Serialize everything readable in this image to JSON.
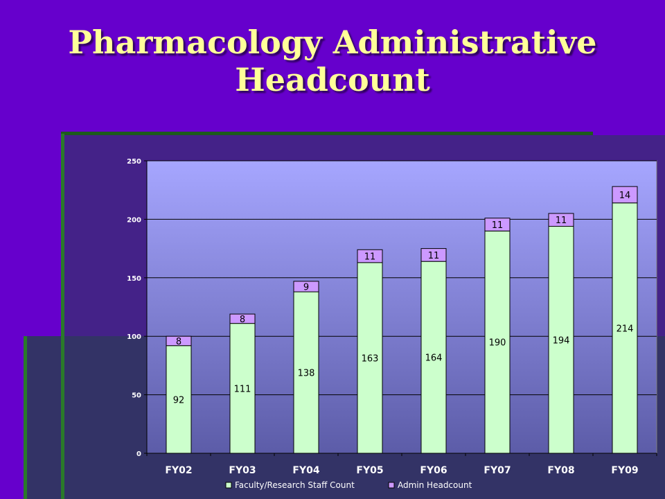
{
  "title_lines": [
    "Pharmacology Administrative",
    "Headcount"
  ],
  "chart_data": {
    "type": "bar",
    "stacked": true,
    "categories": [
      "FY02",
      "FY03",
      "FY04",
      "FY05",
      "FY06",
      "FY07",
      "FY08",
      "FY09"
    ],
    "series": [
      {
        "name": "Faculty/Research Staff Count",
        "values": [
          92,
          111,
          138,
          163,
          164,
          190,
          194,
          214
        ],
        "color": "#ccffcc"
      },
      {
        "name": "Admin Headcount",
        "values": [
          8,
          8,
          9,
          11,
          11,
          11,
          11,
          14
        ],
        "color": "#cc99ff"
      }
    ],
    "ylim": [
      0,
      250
    ],
    "yticks": [
      0,
      50,
      100,
      150,
      200,
      250
    ],
    "grid": true,
    "legend_position": "bottom"
  }
}
